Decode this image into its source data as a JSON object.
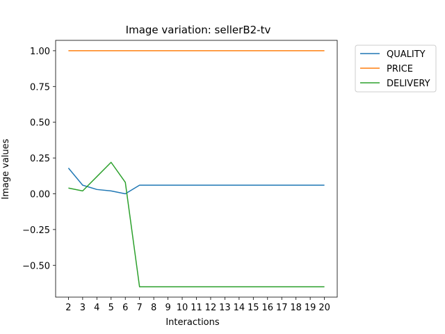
{
  "chart_data": {
    "type": "line",
    "title": "Image variation: sellerB2-tv",
    "xlabel": "Interactions",
    "ylabel": "Image values",
    "x": [
      2,
      3,
      4,
      5,
      6,
      7,
      8,
      9,
      10,
      11,
      12,
      13,
      14,
      15,
      16,
      17,
      18,
      19,
      20
    ],
    "xticks": [
      2,
      3,
      4,
      5,
      6,
      7,
      8,
      9,
      10,
      11,
      12,
      13,
      14,
      15,
      16,
      17,
      18,
      19,
      20
    ],
    "yticks": [
      -0.5,
      -0.25,
      0.0,
      0.25,
      0.5,
      0.75,
      1.0
    ],
    "ytick_labels": [
      "−0.50",
      "−0.25",
      "0.00",
      "0.25",
      "0.50",
      "0.75",
      "1.00"
    ],
    "xlim": [
      1.1,
      20.9
    ],
    "ylim": [
      -0.7225,
      1.0725
    ],
    "grid": false,
    "legend_position": "outside-top-right",
    "series": [
      {
        "name": "QUALITY",
        "color": "#1f77b4",
        "values": [
          0.18,
          0.06,
          0.03,
          0.02,
          0.0,
          0.06,
          0.06,
          0.06,
          0.06,
          0.06,
          0.06,
          0.06,
          0.06,
          0.06,
          0.06,
          0.06,
          0.06,
          0.06,
          0.06
        ]
      },
      {
        "name": "PRICE",
        "color": "#ff7f0e",
        "values": [
          1.0,
          1.0,
          1.0,
          1.0,
          1.0,
          1.0,
          1.0,
          1.0,
          1.0,
          1.0,
          1.0,
          1.0,
          1.0,
          1.0,
          1.0,
          1.0,
          1.0,
          1.0,
          1.0
        ]
      },
      {
        "name": "DELIVERY",
        "color": "#2ca02c",
        "values": [
          0.04,
          0.02,
          0.12,
          0.22,
          0.08,
          -0.65,
          -0.65,
          -0.65,
          -0.65,
          -0.65,
          -0.65,
          -0.65,
          -0.65,
          -0.65,
          -0.65,
          -0.65,
          -0.65,
          -0.65,
          -0.65
        ]
      }
    ]
  }
}
